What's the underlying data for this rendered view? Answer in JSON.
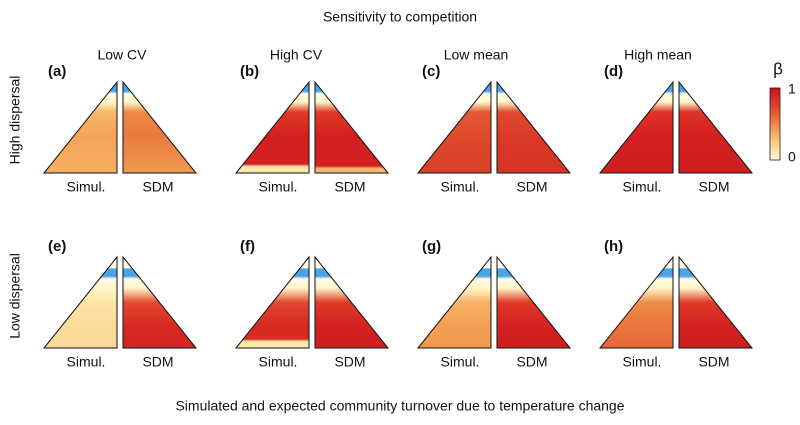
{
  "title": "Sensitivity to competition",
  "columns": [
    "Low CV",
    "High CV",
    "Low mean",
    "High mean"
  ],
  "rows": [
    "High dispersal",
    "Low dispersal"
  ],
  "panels": [
    {
      "letter": "(a)",
      "left": "Simul.",
      "right": "SDM"
    },
    {
      "letter": "(b)",
      "left": "Simul.",
      "right": "SDM"
    },
    {
      "letter": "(c)",
      "left": "Simul.",
      "right": "SDM"
    },
    {
      "letter": "(d)",
      "left": "Simul.",
      "right": "SDM"
    },
    {
      "letter": "(e)",
      "left": "Simul.",
      "right": "SDM"
    },
    {
      "letter": "(f)",
      "left": "Simul.",
      "right": "SDM"
    },
    {
      "letter": "(g)",
      "left": "Simul.",
      "right": "SDM"
    },
    {
      "letter": "(h)",
      "left": "Simul.",
      "right": "SDM"
    }
  ],
  "legend": {
    "title": "β",
    "top": "1",
    "bottom": "0"
  },
  "caption": "Simulated and expected community turnover due to temperature change"
}
